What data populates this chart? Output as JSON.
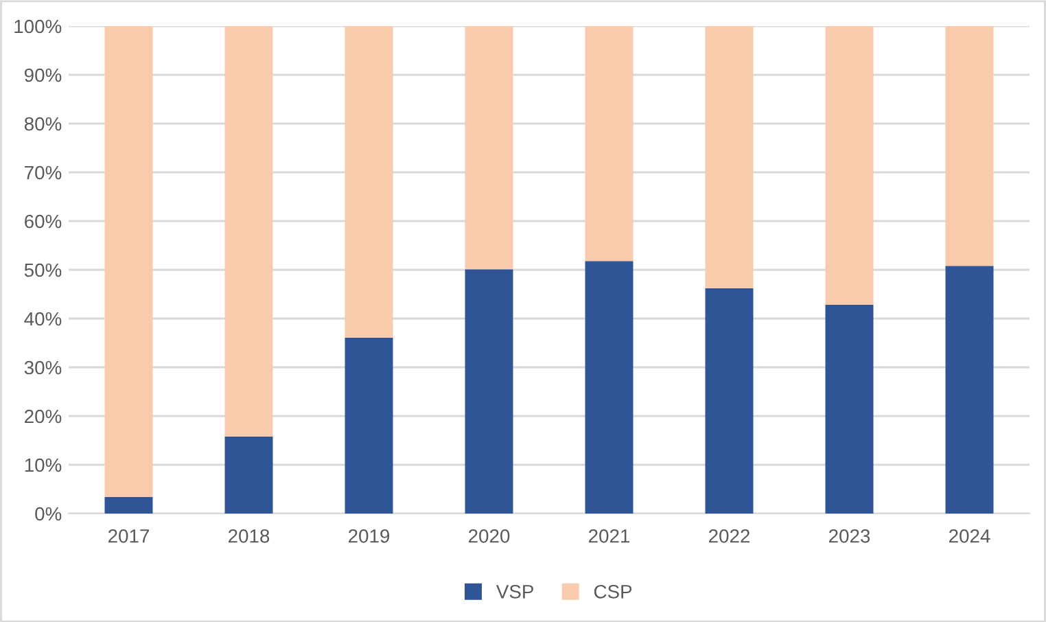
{
  "chart_data": {
    "type": "bar",
    "stacked": true,
    "categories": [
      "2017",
      "2018",
      "2019",
      "2020",
      "2021",
      "2022",
      "2023",
      "2024"
    ],
    "series": [
      {
        "name": "VSP",
        "color": "#2f5597",
        "values": [
          3.4,
          15.8,
          36.1,
          50.1,
          51.8,
          46.2,
          42.8,
          50.8
        ]
      },
      {
        "name": "CSP",
        "color": "#f8cbad",
        "values": [
          96.6,
          84.2,
          63.9,
          49.9,
          48.2,
          53.8,
          57.2,
          49.2
        ]
      }
    ],
    "ylim": [
      0,
      100
    ],
    "yticks": [
      {
        "value": 0,
        "label": "0%"
      },
      {
        "value": 10,
        "label": "10%"
      },
      {
        "value": 20,
        "label": "20%"
      },
      {
        "value": 30,
        "label": "30%"
      },
      {
        "value": 40,
        "label": "40%"
      },
      {
        "value": 50,
        "label": "50%"
      },
      {
        "value": 60,
        "label": "60%"
      },
      {
        "value": 70,
        "label": "70%"
      },
      {
        "value": 80,
        "label": "80%"
      },
      {
        "value": 90,
        "label": "90%"
      },
      {
        "value": 100,
        "label": "100%"
      }
    ],
    "grid": "y",
    "legend": "bottom"
  }
}
